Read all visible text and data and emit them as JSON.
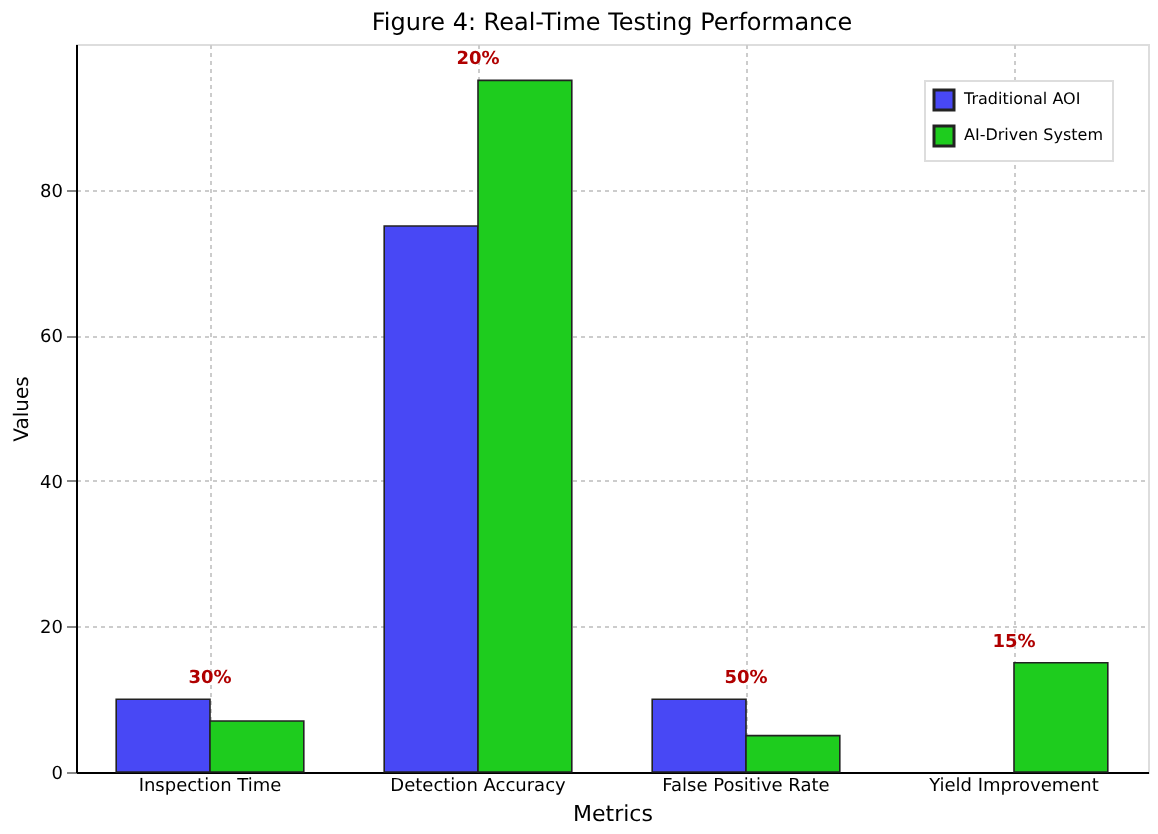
{
  "chart_data": {
    "type": "bar",
    "title": "Figure 4: Real-Time Testing Performance",
    "xlabel": "Metrics",
    "ylabel": "Values",
    "categories": [
      "Inspection Time",
      "Detection Accuracy",
      "False Positive Rate",
      "Yield Improvement"
    ],
    "series": [
      {
        "name": "Traditional AOI",
        "color": "#4848f5",
        "values": [
          10,
          75,
          10,
          null
        ]
      },
      {
        "name": "AI-Driven System",
        "color": "#1ecc1e",
        "values": [
          7,
          95,
          5,
          15
        ]
      }
    ],
    "ylim": [
      0,
      100
    ],
    "yticks": [
      0,
      20,
      40,
      60,
      80
    ],
    "grid": true,
    "legend": "top right",
    "annotations": [
      "30%",
      "20%",
      "50%",
      "15%"
    ]
  }
}
